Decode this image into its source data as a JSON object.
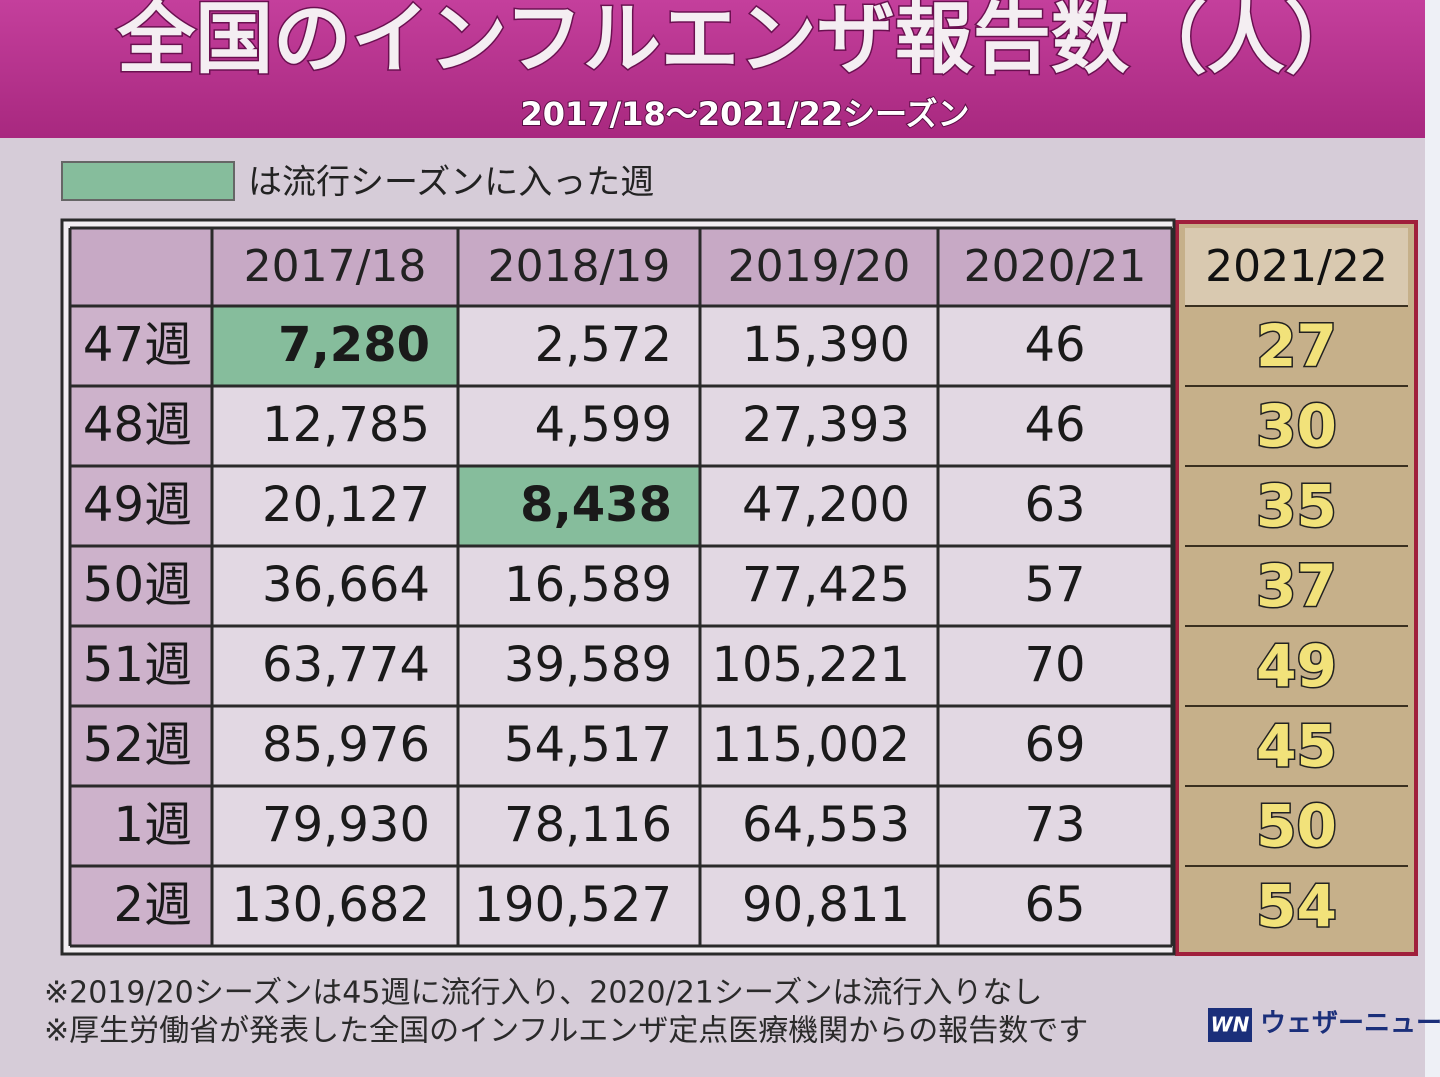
{
  "header": {
    "title": "全国のインフルエンザ報告数（人）",
    "subtitle": "2017/18～2021/22シーズン"
  },
  "legend": {
    "text": "は流行シーズンに入った週",
    "color": "#86bd9c"
  },
  "table": {
    "columns": [
      "2017/18",
      "2018/19",
      "2019/20",
      "2020/21",
      "2021/22"
    ],
    "rows": [
      {
        "week": "47週",
        "values": [
          "7,280",
          "2,572",
          "15,390",
          "46",
          "27"
        ]
      },
      {
        "week": "48週",
        "values": [
          "12,785",
          "4,599",
          "27,393",
          "46",
          "30"
        ]
      },
      {
        "week": "49週",
        "values": [
          "20,127",
          "8,438",
          "47,200",
          "63",
          "35"
        ]
      },
      {
        "week": "50週",
        "values": [
          "36,664",
          "16,589",
          "77,425",
          "57",
          "37"
        ]
      },
      {
        "week": "51週",
        "values": [
          "63,774",
          "39,589",
          "105,221",
          "70",
          "49"
        ]
      },
      {
        "week": "52週",
        "values": [
          "85,976",
          "54,517",
          "115,002",
          "69",
          "45"
        ]
      },
      {
        "week": "1週",
        "values": [
          "79,930",
          "78,116",
          "64,553",
          "73",
          "50"
        ]
      },
      {
        "week": "2週",
        "values": [
          "130,682",
          "190,527",
          "90,811",
          "65",
          "54"
        ]
      }
    ],
    "highlighted_cells": [
      "table.rows.0.values.0",
      "table.rows.2.values.1"
    ]
  },
  "footnotes": [
    "※2019/20シーズンは45週に流行入り、2020/21シーズンは流行入りなし",
    "※厚生労働省が発表した全国のインフルエンザ定点医療機関からの報告数です"
  ],
  "logo": {
    "mark": "WN",
    "text": "ウェザーニュース"
  }
}
